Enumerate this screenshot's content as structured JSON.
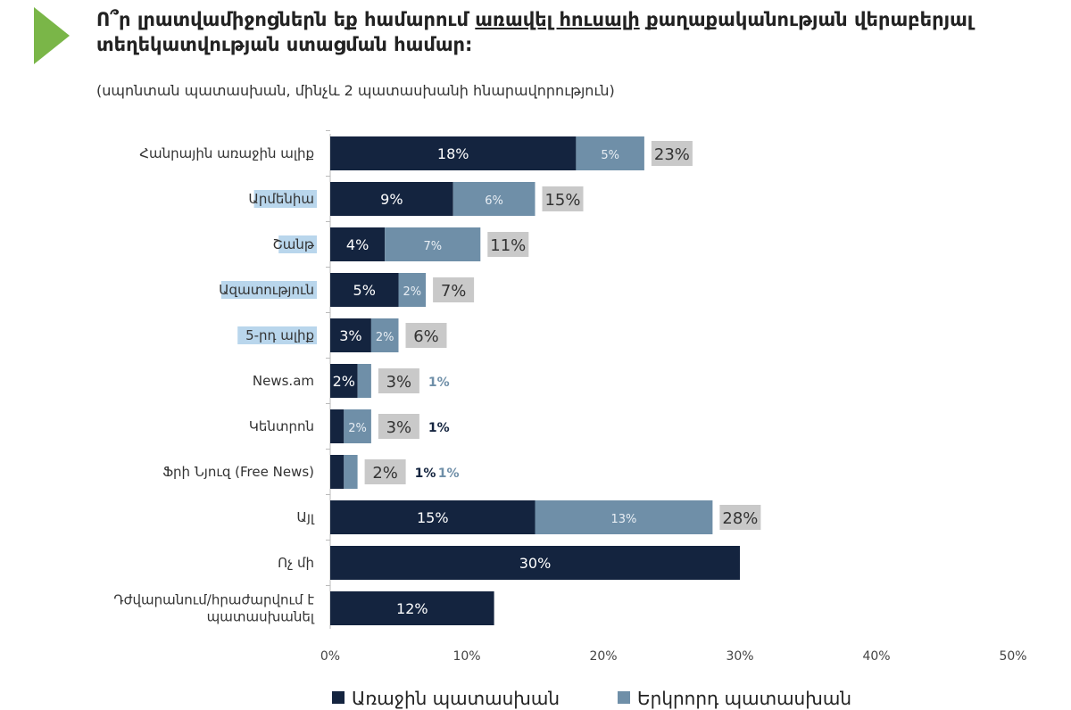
{
  "chart_data": {
    "type": "bar",
    "stacked": true,
    "orientation": "horizontal",
    "title_parts": [
      "Ո՞ր լրատվամիջոցներն եք համարում ",
      "առավել հուսալի",
      " քաղաքականության վերաբերյալ տեղեկատվության ստացման համար:"
    ],
    "subtitle": "(սպոնտան պատասխան, մինչև 2 պատասխանի հնարավորություն)",
    "categories": [
      "Հանրային առաջին ալիք",
      "Արմենիա",
      "Շանթ",
      "Ազատություն",
      "5-րդ ալիք",
      "News.am",
      "Կենտրոն",
      "Ֆրի Նյուզ (Free News)",
      "Այլ",
      "Ոչ մի",
      "Դժվարանում/հրաժարվում է պատասխանել"
    ],
    "highlighted": [
      false,
      true,
      true,
      true,
      true,
      false,
      false,
      false,
      false,
      false,
      false
    ],
    "series": [
      {
        "name": "Առաջին պատասխան",
        "color": "#14243f",
        "values": [
          18,
          9,
          4,
          5,
          3,
          2,
          1,
          1,
          15,
          30,
          12
        ]
      },
      {
        "name": "Երկրորդ պատասխան",
        "color": "#6f8fa8",
        "values": [
          5,
          6,
          7,
          2,
          2,
          1,
          2,
          1,
          13,
          0,
          0
        ]
      }
    ],
    "totals": [
      23,
      15,
      11,
      7,
      6,
      3,
      3,
      2,
      28,
      null,
      null
    ],
    "xlim": [
      0,
      50
    ],
    "xticks": [
      "0%",
      "10%",
      "20%",
      "30%",
      "40%",
      "50%"
    ],
    "legend_position": "bottom",
    "highlight_color": "#b9d6ec",
    "total_label_bg": "#c9c9c9"
  }
}
